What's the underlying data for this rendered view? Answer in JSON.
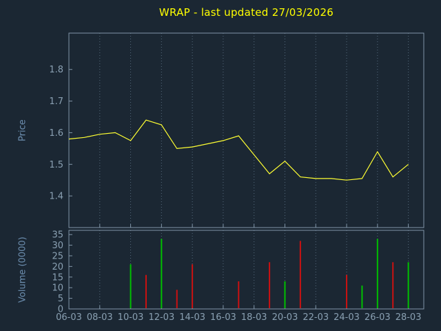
{
  "title": "WRAP - last updated 27/03/2026",
  "colors": {
    "background": "#1b2733",
    "title": "#ffff00",
    "axis_label": "#6d8fb0",
    "tick_label": "#8aa0b2",
    "frame": "#8296a8",
    "grid": "#566b7e",
    "price_line": "#ffff33",
    "volume_up": "#00c000",
    "volume_down": "#cc1111"
  },
  "x_axis": {
    "domain_days": [
      6,
      29
    ],
    "tick_days": [
      6,
      8,
      10,
      12,
      14,
      16,
      18,
      20,
      22,
      24,
      26,
      28
    ],
    "tick_labels": [
      "06-03",
      "08-03",
      "10-03",
      "12-03",
      "14-03",
      "16-03",
      "18-03",
      "20-03",
      "22-03",
      "24-03",
      "26-03",
      "28-03"
    ]
  },
  "chart_data": [
    {
      "type": "line",
      "name": "price",
      "title": "WRAP - last updated 27/03/2026",
      "ylabel": "Price",
      "ylim": [
        1.3,
        1.915
      ],
      "yticks": [
        1.4,
        1.5,
        1.6,
        1.7,
        1.8
      ],
      "grid": "vertical-dotted",
      "legend": "none",
      "x_days": [
        6,
        7,
        8,
        9,
        10,
        11,
        12,
        13,
        14,
        15,
        16,
        17,
        18,
        19,
        20,
        21,
        22,
        23,
        24,
        25,
        26,
        27,
        28
      ],
      "values": [
        1.58,
        1.585,
        1.595,
        1.6,
        1.575,
        1.64,
        1.625,
        1.55,
        1.555,
        1.565,
        1.575,
        1.59,
        1.53,
        1.47,
        1.51,
        1.46,
        1.455,
        1.455,
        1.45,
        1.455,
        1.54,
        1.46,
        1.5
      ]
    },
    {
      "type": "bar",
      "name": "volume",
      "ylabel": "Volume (0000)",
      "ylim": [
        0,
        37
      ],
      "yticks": [
        0,
        5,
        10,
        15,
        20,
        25,
        30,
        35
      ],
      "grid": "vertical-dotted",
      "bars": [
        {
          "day": 10,
          "value": 21,
          "dir": "up"
        },
        {
          "day": 11,
          "value": 16,
          "dir": "down"
        },
        {
          "day": 12,
          "value": 33,
          "dir": "up"
        },
        {
          "day": 13,
          "value": 9,
          "dir": "down"
        },
        {
          "day": 14,
          "value": 21,
          "dir": "down"
        },
        {
          "day": 17,
          "value": 13,
          "dir": "down"
        },
        {
          "day": 19,
          "value": 22,
          "dir": "down"
        },
        {
          "day": 20,
          "value": 13,
          "dir": "up"
        },
        {
          "day": 21,
          "value": 32,
          "dir": "down"
        },
        {
          "day": 24,
          "value": 16,
          "dir": "down"
        },
        {
          "day": 25,
          "value": 11,
          "dir": "up"
        },
        {
          "day": 26,
          "value": 33,
          "dir": "up"
        },
        {
          "day": 27,
          "value": 22,
          "dir": "down"
        },
        {
          "day": 28,
          "value": 22,
          "dir": "up"
        }
      ]
    }
  ]
}
